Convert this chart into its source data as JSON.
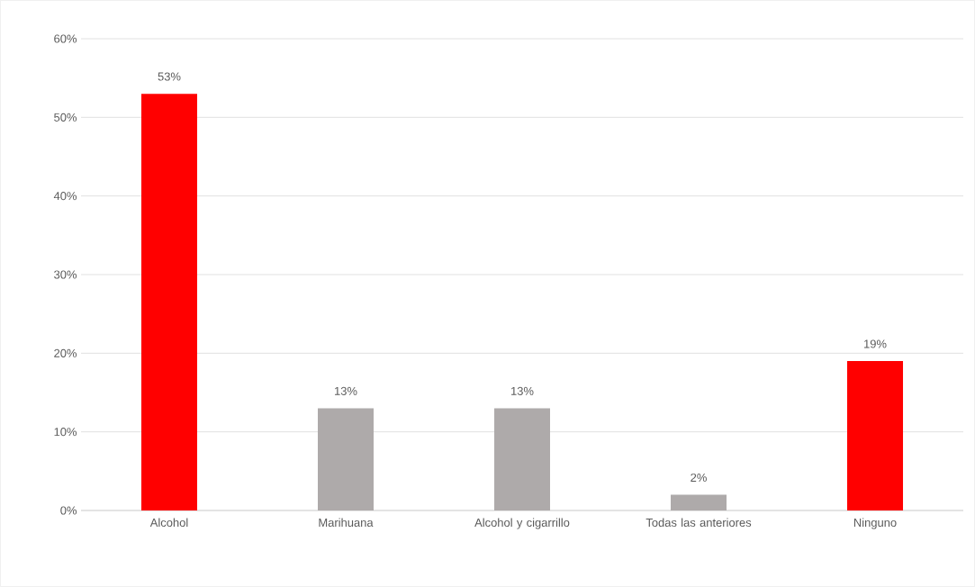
{
  "chart_data": {
    "type": "bar",
    "categories": [
      "Alcohol",
      "Marihuana",
      "Alcohol y cigarrillo",
      "Todas las anteriores",
      "Ninguno"
    ],
    "values": [
      53,
      13,
      13,
      2,
      19
    ],
    "colors": [
      "#ff0000",
      "#aeaaaa",
      "#aeaaaa",
      "#aeaaaa",
      "#ff0000"
    ],
    "value_labels": [
      "53%",
      "13%",
      "13%",
      "2%",
      "19%"
    ],
    "ylim": [
      0,
      60
    ],
    "yticks": [
      {
        "value": 0,
        "label": "0%"
      },
      {
        "value": 10,
        "label": "10%"
      },
      {
        "value": 20,
        "label": "20%"
      },
      {
        "value": 30,
        "label": "30%"
      },
      {
        "value": 40,
        "label": "40%"
      },
      {
        "value": 50,
        "label": "50%"
      },
      {
        "value": 60,
        "label": "60%"
      }
    ],
    "grid": "y"
  }
}
